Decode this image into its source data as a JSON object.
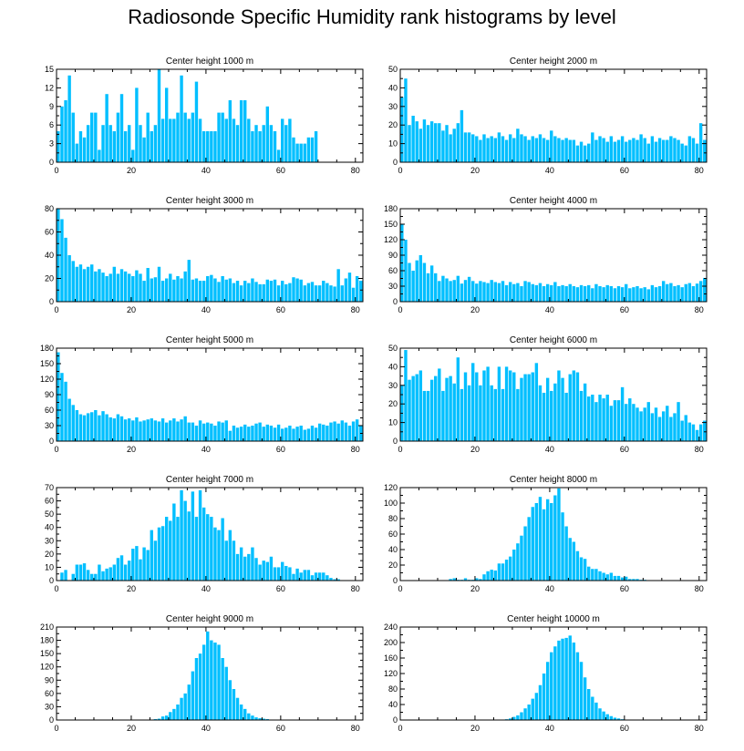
{
  "title": "Radiosonde Specific Humidity rank histograms by level",
  "bar_color": "#00BFFF",
  "chart_data": [
    {
      "type": "bar",
      "title": "Center height 1000 m",
      "xlabel": "",
      "ylabel": "",
      "xlim": [
        0,
        82
      ],
      "ylim": [
        0,
        15
      ],
      "xticks": [
        0,
        20,
        40,
        60,
        80
      ],
      "yticks": [
        0,
        3,
        6,
        9,
        12,
        15
      ],
      "values": [
        5,
        9,
        10,
        14,
        8,
        3,
        5,
        4,
        6,
        8,
        8,
        2,
        6,
        11,
        6,
        5,
        8,
        11,
        5,
        6,
        2,
        12,
        6,
        4,
        8,
        5,
        6,
        15,
        7,
        12,
        7,
        7,
        8,
        14,
        8,
        7,
        8,
        13,
        7,
        5,
        5,
        5,
        5,
        8,
        8,
        7,
        10,
        7,
        6,
        10,
        10,
        7,
        5,
        6,
        5,
        6,
        9,
        6,
        5,
        2,
        7,
        6,
        7,
        4,
        3,
        3,
        3,
        4,
        4,
        5
      ],
      "notes": "1000m"
    },
    {
      "type": "bar",
      "title": "Center height 2000 m",
      "xlabel": "",
      "ylabel": "",
      "xlim": [
        0,
        82
      ],
      "ylim": [
        0,
        50
      ],
      "xticks": [
        0,
        20,
        40,
        60,
        80
      ],
      "yticks": [
        0,
        10,
        20,
        30,
        40,
        50
      ],
      "values": [
        35,
        45,
        20,
        25,
        22,
        18,
        23,
        20,
        22,
        21,
        21,
        17,
        20,
        15,
        18,
        21,
        28,
        16,
        16,
        15,
        14,
        12,
        15,
        13,
        14,
        13,
        16,
        14,
        12,
        15,
        13,
        18,
        15,
        14,
        12,
        14,
        13,
        15,
        13,
        12,
        17,
        14,
        13,
        12,
        13,
        12,
        12,
        9,
        11,
        9,
        10,
        16,
        12,
        14,
        13,
        11,
        14,
        11,
        12,
        14,
        11,
        12,
        13,
        12,
        15,
        13,
        10,
        14,
        11,
        13,
        12,
        12,
        14,
        13,
        12,
        10,
        9,
        14,
        13,
        10,
        21,
        12
      ]
    },
    {
      "type": "bar",
      "title": "Center height 3000 m",
      "xlabel": "",
      "ylabel": "",
      "xlim": [
        0,
        82
      ],
      "ylim": [
        0,
        80
      ],
      "xticks": [
        0,
        20,
        40,
        60,
        80
      ],
      "yticks": [
        0,
        20,
        40,
        60,
        80
      ],
      "values": [
        80,
        71,
        55,
        40,
        35,
        30,
        32,
        28,
        30,
        32,
        26,
        28,
        25,
        22,
        24,
        30,
        24,
        28,
        26,
        24,
        22,
        27,
        24,
        18,
        29,
        20,
        21,
        30,
        18,
        20,
        24,
        19,
        22,
        20,
        26,
        36,
        19,
        20,
        18,
        18,
        22,
        23,
        20,
        17,
        22,
        19,
        20,
        16,
        18,
        14,
        18,
        16,
        20,
        17,
        15,
        15,
        19,
        18,
        19,
        14,
        18,
        15,
        16,
        21,
        20,
        19,
        14,
        16,
        17,
        14,
        14,
        18,
        16,
        14,
        13,
        28,
        14,
        20,
        25,
        12,
        22,
        18
      ]
    },
    {
      "type": "bar",
      "title": "Center height 4000 m",
      "xlabel": "",
      "ylabel": "",
      "xlim": [
        0,
        82
      ],
      "ylim": [
        0,
        180
      ],
      "xticks": [
        0,
        20,
        40,
        60,
        80
      ],
      "yticks": [
        0,
        30,
        60,
        90,
        120,
        150,
        180
      ],
      "values": [
        150,
        120,
        75,
        60,
        80,
        90,
        75,
        55,
        70,
        55,
        40,
        50,
        45,
        40,
        42,
        50,
        35,
        42,
        48,
        40,
        35,
        40,
        38,
        36,
        42,
        38,
        36,
        40,
        32,
        38,
        34,
        36,
        30,
        40,
        38,
        34,
        32,
        36,
        30,
        34,
        32,
        38,
        30,
        32,
        30,
        34,
        30,
        28,
        32,
        30,
        32,
        26,
        34,
        30,
        28,
        32,
        30,
        26,
        30,
        28,
        34,
        26,
        28,
        30,
        26,
        28,
        24,
        32,
        28,
        30,
        40,
        34,
        36,
        30,
        32,
        28,
        34,
        36,
        30,
        35,
        40,
        46
      ]
    },
    {
      "type": "bar",
      "title": "Center height 5000 m",
      "xlabel": "",
      "ylabel": "",
      "xlim": [
        0,
        82
      ],
      "ylim": [
        0,
        180
      ],
      "xticks": [
        0,
        20,
        40,
        60,
        80
      ],
      "yticks": [
        0,
        30,
        60,
        90,
        120,
        150,
        180
      ],
      "values": [
        172,
        132,
        115,
        82,
        70,
        60,
        52,
        50,
        54,
        56,
        60,
        50,
        58,
        52,
        46,
        44,
        52,
        48,
        42,
        44,
        40,
        46,
        38,
        40,
        42,
        44,
        40,
        38,
        44,
        36,
        40,
        44,
        38,
        42,
        48,
        36,
        36,
        30,
        40,
        34,
        36,
        34,
        30,
        38,
        36,
        40,
        20,
        30,
        26,
        28,
        32,
        28,
        30,
        34,
        36,
        28,
        32,
        30,
        26,
        32,
        24,
        26,
        30,
        24,
        28,
        30,
        22,
        24,
        30,
        26,
        34,
        32,
        30,
        36,
        38,
        34,
        40,
        36,
        30,
        38,
        42,
        30
      ]
    },
    {
      "type": "bar",
      "title": "Center height 6000 m",
      "xlabel": "",
      "ylabel": "",
      "xlim": [
        0,
        82
      ],
      "ylim": [
        0,
        50
      ],
      "xticks": [
        0,
        20,
        40,
        60,
        80
      ],
      "yticks": [
        0,
        10,
        20,
        30,
        40,
        50
      ],
      "values": [
        30,
        49,
        33,
        35,
        36,
        38,
        27,
        27,
        33,
        35,
        39,
        27,
        34,
        35,
        31,
        45,
        28,
        37,
        30,
        42,
        37,
        30,
        38,
        40,
        30,
        28,
        40,
        28,
        40,
        38,
        37,
        28,
        34,
        36,
        36,
        37,
        42,
        30,
        26,
        34,
        27,
        31,
        38,
        34,
        26,
        36,
        38,
        37,
        27,
        31,
        24,
        25,
        21,
        25,
        23,
        25,
        19,
        22,
        22,
        29,
        20,
        23,
        20,
        18,
        16,
        18,
        21,
        15,
        18,
        13,
        16,
        19,
        13,
        15,
        21,
        11,
        14,
        10,
        9,
        6,
        9,
        11
      ]
    },
    {
      "type": "bar",
      "title": "Center height 7000 m",
      "xlabel": "",
      "ylabel": "",
      "xlim": [
        0,
        82
      ],
      "ylim": [
        0,
        70
      ],
      "xticks": [
        0,
        20,
        40,
        60,
        80
      ],
      "yticks": [
        0,
        10,
        20,
        30,
        40,
        50,
        60,
        70
      ],
      "values": [
        0,
        6,
        8,
        0,
        5,
        12,
        12,
        13,
        8,
        5,
        5,
        12,
        7,
        9,
        10,
        12,
        17,
        19,
        12,
        15,
        24,
        26,
        16,
        25,
        23,
        38,
        30,
        40,
        41,
        48,
        45,
        58,
        48,
        68,
        60,
        52,
        67,
        48,
        68,
        55,
        50,
        48,
        40,
        38,
        47,
        30,
        38,
        30,
        20,
        25,
        18,
        20,
        25,
        17,
        12,
        15,
        14,
        18,
        10,
        10,
        14,
        11,
        10,
        5,
        9,
        6,
        8,
        8,
        4,
        6,
        6,
        6,
        4,
        2,
        1,
        1
      ]
    },
    {
      "type": "bar",
      "title": "Center height 8000 m",
      "xlabel": "",
      "ylabel": "",
      "xlim": [
        0,
        82
      ],
      "ylim": [
        0,
        120
      ],
      "xticks": [
        0,
        20,
        40,
        60,
        80
      ],
      "yticks": [
        0,
        20,
        40,
        60,
        80,
        100,
        120
      ],
      "values": [
        0,
        0,
        0,
        0,
        0,
        0,
        0,
        0,
        0,
        0,
        0,
        0,
        0,
        2,
        3,
        1,
        1,
        3,
        1,
        1,
        3,
        2,
        8,
        12,
        14,
        13,
        22,
        22,
        27,
        31,
        40,
        48,
        58,
        70,
        82,
        95,
        100,
        108,
        92,
        105,
        100,
        110,
        119,
        88,
        70,
        55,
        50,
        38,
        30,
        28,
        18,
        15,
        15,
        12,
        10,
        8,
        10,
        6,
        6,
        4,
        5,
        2,
        2,
        2,
        1,
        1,
        0,
        0,
        0,
        0,
        0,
        0,
        0,
        0,
        0,
        0,
        0,
        0,
        0,
        0,
        0,
        0
      ]
    },
    {
      "type": "bar",
      "title": "Center height 9000 m",
      "xlabel": "",
      "ylabel": "",
      "xlim": [
        0,
        82
      ],
      "ylim": [
        0,
        210
      ],
      "xticks": [
        0,
        20,
        40,
        60,
        80
      ],
      "yticks": [
        0,
        30,
        60,
        90,
        120,
        150,
        180,
        210
      ],
      "values": [
        0,
        0,
        0,
        0,
        0,
        0,
        0,
        0,
        0,
        0,
        0,
        0,
        0,
        0,
        0,
        0,
        0,
        0,
        0,
        0,
        0,
        0,
        0,
        0,
        0,
        1,
        2,
        3,
        8,
        10,
        18,
        25,
        35,
        50,
        60,
        80,
        110,
        140,
        150,
        170,
        200,
        180,
        175,
        170,
        140,
        120,
        90,
        70,
        50,
        35,
        25,
        15,
        10,
        6,
        4,
        3,
        2,
        1,
        1,
        0,
        0,
        0,
        0,
        0,
        0,
        0,
        0,
        0,
        0,
        0,
        0,
        0,
        0,
        0,
        0,
        0,
        0,
        0,
        0,
        0,
        0,
        0
      ]
    },
    {
      "type": "bar",
      "title": "Center height 10000 m",
      "xlabel": "",
      "ylabel": "",
      "xlim": [
        0,
        82
      ],
      "ylim": [
        0,
        240
      ],
      "xticks": [
        0,
        20,
        40,
        60,
        80
      ],
      "yticks": [
        0,
        40,
        80,
        120,
        160,
        200,
        240
      ],
      "values": [
        0,
        0,
        0,
        0,
        0,
        0,
        0,
        0,
        0,
        0,
        0,
        0,
        0,
        0,
        0,
        0,
        0,
        0,
        0,
        0,
        0,
        0,
        0,
        0,
        0,
        0,
        0,
        1,
        2,
        4,
        8,
        12,
        20,
        30,
        40,
        55,
        70,
        90,
        120,
        150,
        175,
        190,
        205,
        210,
        212,
        218,
        200,
        175,
        150,
        110,
        80,
        60,
        45,
        30,
        22,
        15,
        10,
        6,
        4,
        2,
        1,
        1,
        0,
        0,
        0,
        0,
        0,
        0,
        0,
        0,
        0,
        0,
        0,
        0,
        0,
        0,
        0,
        0,
        0,
        0,
        0,
        0
      ]
    }
  ]
}
